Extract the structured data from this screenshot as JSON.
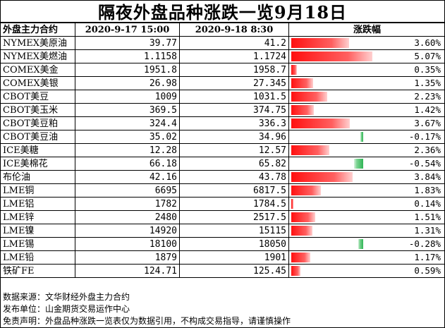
{
  "title": "隔夜外盘品种涨跌一览9月18日",
  "headers": {
    "contract": "外盘主力合约",
    "date1": "2020-9-17 15:00",
    "date2": "2020-9-18 8:30",
    "change": "涨跌幅"
  },
  "rows": [
    {
      "name": "NYMEX美原油",
      "v1": "39.77",
      "v2": "41.2",
      "chg": "3.60%",
      "pct": 3.6
    },
    {
      "name": "NYMEX美燃油",
      "v1": "1.1158",
      "v2": "1.1724",
      "chg": "5.07%",
      "pct": 5.07
    },
    {
      "name": "COMEX美金",
      "v1": "1951.8",
      "v2": "1958.7",
      "chg": "0.35%",
      "pct": 0.35
    },
    {
      "name": "COMEX美银",
      "v1": "26.98",
      "v2": "27.345",
      "chg": "1.35%",
      "pct": 1.35
    },
    {
      "name": "CBOT美豆",
      "v1": "1009",
      "v2": "1031.5",
      "chg": "2.23%",
      "pct": 2.23
    },
    {
      "name": "CBOT美玉米",
      "v1": "369.5",
      "v2": "374.75",
      "chg": "1.42%",
      "pct": 1.42
    },
    {
      "name": "CBOT美豆粕",
      "v1": "324.4",
      "v2": "336.3",
      "chg": "3.67%",
      "pct": 3.67
    },
    {
      "name": "CBOT美豆油",
      "v1": "35.02",
      "v2": "34.96",
      "chg": "-0.17%",
      "pct": -0.17
    },
    {
      "name": "ICE美糖",
      "v1": "12.28",
      "v2": "12.57",
      "chg": "2.36%",
      "pct": 2.36
    },
    {
      "name": "ICE美棉花",
      "v1": "66.18",
      "v2": "65.82",
      "chg": "-0.54%",
      "pct": -0.54
    },
    {
      "name": "布伦油",
      "v1": "42.16",
      "v2": "43.78",
      "chg": "3.84%",
      "pct": 3.84
    },
    {
      "name": "LME铜",
      "v1": "6695",
      "v2": "6817.5",
      "chg": "1.83%",
      "pct": 1.83
    },
    {
      "name": "LME铝",
      "v1": "1782",
      "v2": "1784.5",
      "chg": "0.14%",
      "pct": 0.14
    },
    {
      "name": "LME锌",
      "v1": "2480",
      "v2": "2517.5",
      "chg": "1.51%",
      "pct": 1.51
    },
    {
      "name": "LME镍",
      "v1": "14920",
      "v2": "15115",
      "chg": "1.31%",
      "pct": 1.31
    },
    {
      "name": "LME锡",
      "v1": "18100",
      "v2": "18050",
      "chg": "-0.28%",
      "pct": -0.28
    },
    {
      "name": "LME铅",
      "v1": "1879",
      "v2": "1901",
      "chg": "1.17%",
      "pct": 1.17
    },
    {
      "name": "铁矿FE",
      "v1": "124.71",
      "v2": "125.45",
      "chg": "0.59%",
      "pct": 0.59
    }
  ],
  "footer": {
    "source": "数据来源：文华财经外盘主力合约",
    "publisher": "发布单位：山金期货交易运作中心",
    "disclaimer": "免责声明：外盘品种涨跌一览表仅为数据引用，不构成交易指导，请谨慎操作"
  },
  "colors": {
    "up_bar": "#ff1010",
    "down_bar": "#2fb455"
  }
}
